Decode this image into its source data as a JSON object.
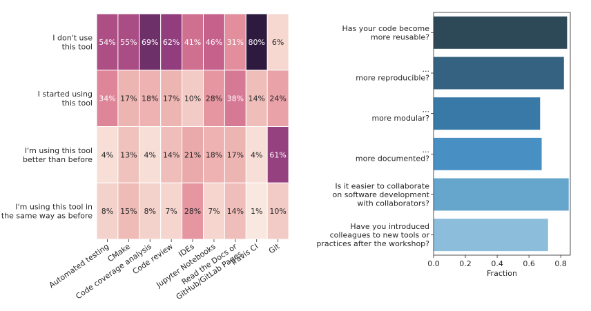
{
  "chart_data": [
    {
      "type": "heatmap",
      "rows": [
        "I don't use|this tool",
        "I started using|this tool",
        "I'm using this tool|better than before",
        "I'm using this tool in|the same way as before"
      ],
      "columns": [
        "Automated testing",
        "CMake",
        "Code coverage analysis",
        "Code review",
        "IDEs",
        "Jupyter Notebooks",
        "Read the Docs or|GitHub/GitLab Pages",
        "Travis CI",
        "Git"
      ],
      "values": [
        [
          54,
          55,
          69,
          62,
          41,
          46,
          31,
          80,
          6
        ],
        [
          34,
          17,
          18,
          17,
          10,
          28,
          38,
          14,
          24
        ],
        [
          4,
          13,
          4,
          14,
          21,
          18,
          17,
          4,
          61
        ],
        [
          8,
          15,
          8,
          7,
          28,
          7,
          14,
          1,
          10
        ]
      ],
      "value_suffix": "%",
      "colormap": [
        "#faebe3",
        "#eeb8b4",
        "#e28b9b",
        "#c25b8a",
        "#8b3a7c",
        "#2e1a3f"
      ]
    },
    {
      "type": "bar",
      "orientation": "horizontal",
      "categories": [
        "Has your code become|more reusable?",
        "...|more reproducible?",
        "...|more modular?",
        "...|more documented?",
        "Is it easier to collaborate|on software development|with collaborators?",
        "Have you introduced|colleagues to new tools or|practices after the workshop?"
      ],
      "values": [
        0.84,
        0.82,
        0.67,
        0.68,
        0.85,
        0.72
      ],
      "colors": [
        "#2d4957",
        "#356280",
        "#3879a8",
        "#4890c4",
        "#66a6cc",
        "#8cbddb"
      ],
      "xlabel": "Fraction",
      "xlim": [
        0,
        0.86
      ],
      "xticks": [
        "0.0",
        "0.2",
        "0.4",
        "0.6",
        "0.8"
      ],
      "xtick_values": [
        0,
        0.2,
        0.4,
        0.6,
        0.8
      ]
    }
  ]
}
